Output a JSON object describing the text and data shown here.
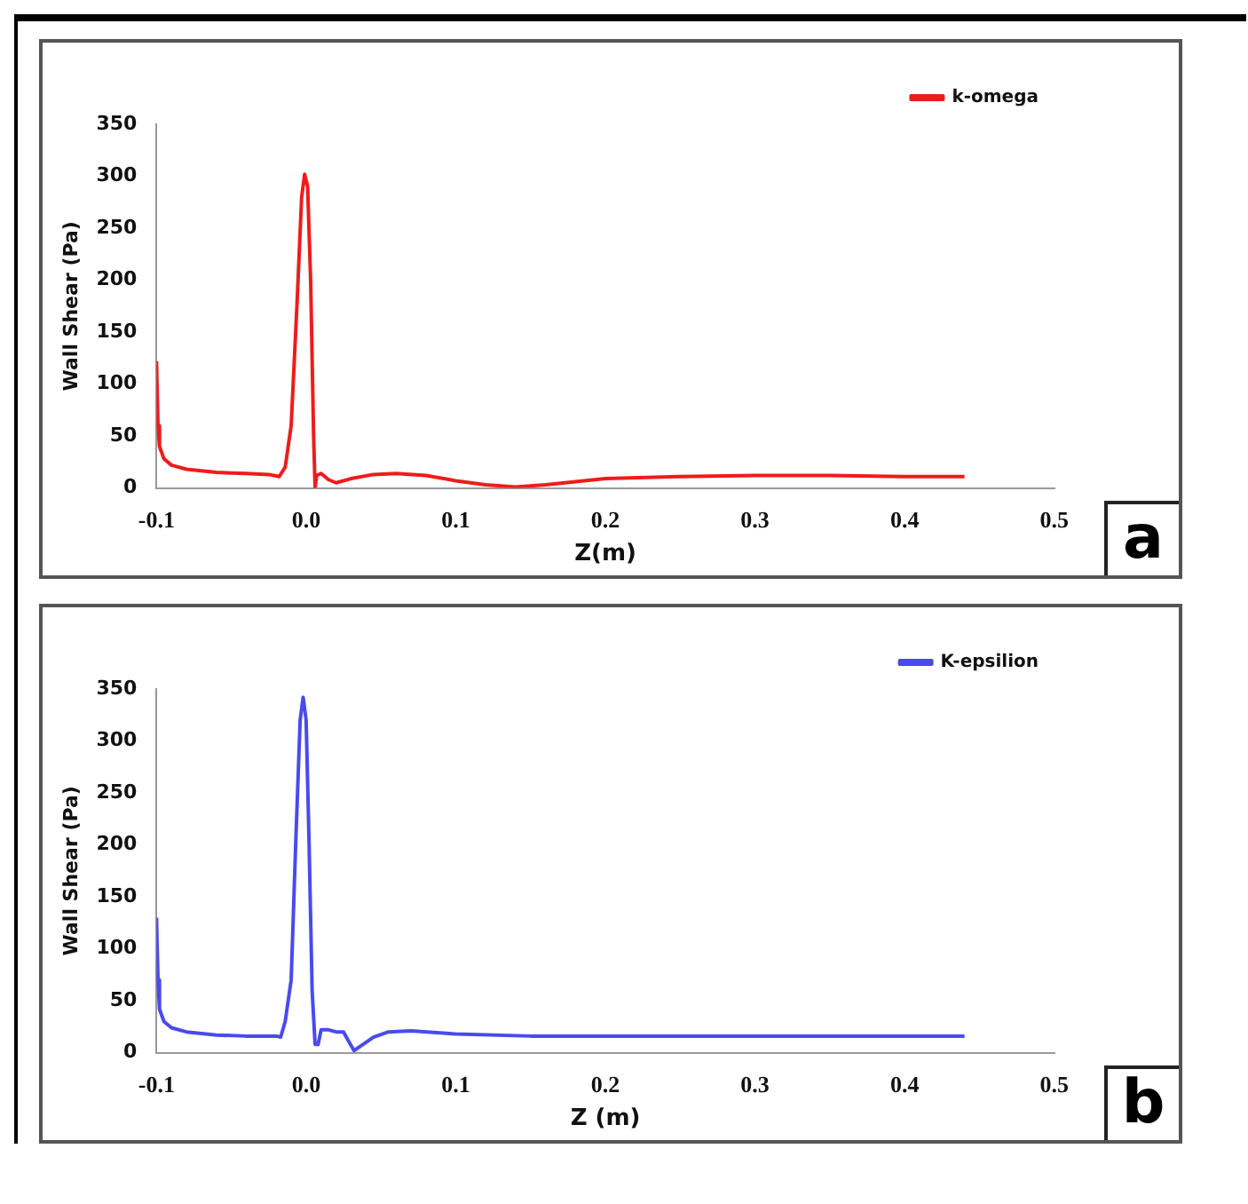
{
  "chart_data": [
    {
      "type": "line",
      "xlabel": "Z(m)",
      "ylabel": "Wall Shear (Pa)",
      "xlim": [
        -0.1,
        0.5
      ],
      "ylim": [
        0,
        350
      ],
      "xticks": [
        -0.1,
        {
          "value": 0,
          "label": "0.0"
        },
        0.1,
        0.2,
        0.3,
        0.4,
        0.5
      ],
      "yticks": [
        0,
        50,
        100,
        150,
        200,
        250,
        300,
        350
      ],
      "grid": false,
      "legend": "top right",
      "marker": "none",
      "line_style": "solid",
      "annotations": [
        "a"
      ],
      "series": [
        {
          "name": "k-omega",
          "color": "#ee1c1c",
          "x": [
            -0.1,
            -0.099,
            -0.098,
            -0.095,
            -0.09,
            -0.08,
            -0.06,
            -0.04,
            -0.025,
            -0.018,
            -0.014,
            -0.01,
            -0.006,
            -0.003,
            -0.001,
            0.001,
            0.003,
            0.005,
            0.006,
            0.007,
            0.01,
            0.015,
            0.02,
            0.03,
            0.045,
            0.06,
            0.08,
            0.1,
            0.12,
            0.14,
            0.16,
            0.18,
            0.2,
            0.25,
            0.3,
            0.35,
            0.4,
            0.44
          ],
          "values": [
            122,
            60,
            40,
            28,
            22,
            18,
            15,
            14,
            13,
            11,
            20,
            60,
            180,
            280,
            302,
            290,
            200,
            50,
            0,
            12,
            14,
            8,
            5,
            9,
            13,
            14,
            12,
            7,
            3,
            1,
            3,
            6,
            9,
            11,
            12,
            12,
            11,
            11
          ]
        }
      ]
    },
    {
      "type": "line",
      "xlabel": "Z (m)",
      "ylabel": "Wall Shear (Pa)",
      "xlim": [
        -0.1,
        0.5
      ],
      "ylim": [
        0,
        350
      ],
      "xticks": [
        -0.1,
        {
          "value": 0,
          "label": "0.0"
        },
        0.1,
        0.2,
        0.3,
        0.4,
        0.5
      ],
      "yticks": [
        0,
        50,
        100,
        150,
        200,
        250,
        300,
        350
      ],
      "grid": false,
      "legend": "top right",
      "marker": "none",
      "line_style": "solid",
      "annotations": [
        "b"
      ],
      "series": [
        {
          "name": "K-epsilion",
          "color": "#4a4aee",
          "x": [
            -0.1,
            -0.099,
            -0.098,
            -0.095,
            -0.09,
            -0.08,
            -0.06,
            -0.04,
            -0.02,
            -0.017,
            -0.014,
            -0.01,
            -0.007,
            -0.004,
            -0.002,
            0,
            0.002,
            0.004,
            0.006,
            0.008,
            0.01,
            0.015,
            0.02,
            0.025,
            0.028,
            0.032,
            0.036,
            0.045,
            0.055,
            0.07,
            0.1,
            0.15,
            0.2,
            0.3,
            0.44
          ],
          "values": [
            130,
            70,
            42,
            30,
            24,
            20,
            17,
            16,
            16,
            15,
            30,
            70,
            200,
            320,
            342,
            320,
            200,
            60,
            8,
            8,
            22,
            22,
            20,
            20,
            12,
            2,
            6,
            15,
            20,
            21,
            18,
            16,
            16,
            16,
            16
          ]
        }
      ]
    }
  ]
}
